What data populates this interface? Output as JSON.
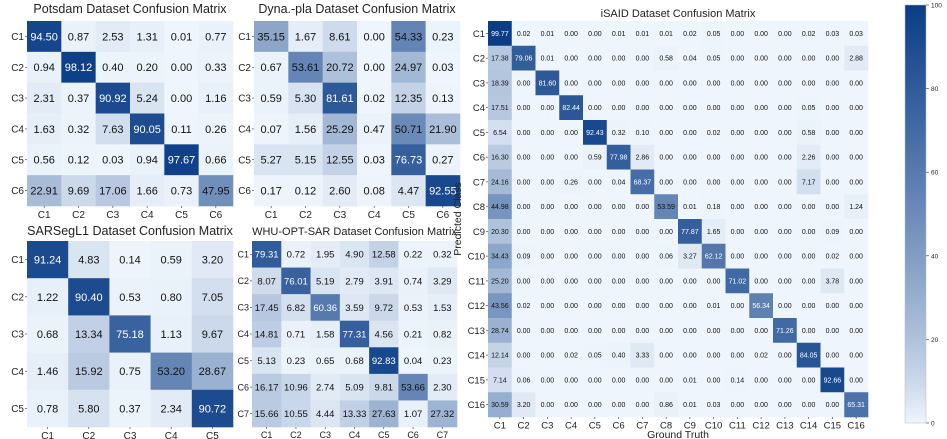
{
  "chart_data": [
    {
      "type": "heatmap",
      "title": "Potsdam Dataset Confusion Matrix",
      "row_labels": [
        "C1",
        "C2",
        "C3",
        "C4",
        "C5",
        "C6"
      ],
      "col_labels": [
        "C1",
        "C2",
        "C3",
        "C4",
        "C5",
        "C6"
      ],
      "values": [
        [
          "94.50",
          "0.87",
          "2.53",
          "1.31",
          "0.01",
          "0.77"
        ],
        [
          "0.94",
          "98.12",
          "0.40",
          "0.20",
          "0.00",
          "0.33"
        ],
        [
          "2.31",
          "0.37",
          "90.92",
          "5.24",
          "0.00",
          "1.16"
        ],
        [
          "1.63",
          "0.32",
          "7.63",
          "90.05",
          "0.11",
          "0.26"
        ],
        [
          "0.56",
          "0.12",
          "0.03",
          "0.94",
          "97.67",
          "0.66"
        ],
        [
          "22.91",
          "9.69",
          "17.06",
          "1.66",
          "0.73",
          "47.95"
        ]
      ]
    },
    {
      "type": "heatmap",
      "title": "Dyna.-pla Dataset Confusion Matrix",
      "row_labels": [
        "C1",
        "C2",
        "C3",
        "C4",
        "C5",
        "C6"
      ],
      "col_labels": [
        "C1",
        "C2",
        "C3",
        "C4",
        "C5",
        "C6"
      ],
      "values": [
        [
          "35.15",
          "1.67",
          "8.61",
          "0.00",
          "54.33",
          "0.23"
        ],
        [
          "0.67",
          "53.61",
          "20.72",
          "0.00",
          "24.97",
          "0.03"
        ],
        [
          "0.59",
          "5.30",
          "81.61",
          "0.02",
          "12.35",
          "0.13"
        ],
        [
          "0.07",
          "1.56",
          "25.29",
          "0.47",
          "50.71",
          "21.90"
        ],
        [
          "5.27",
          "5.15",
          "12.55",
          "0.03",
          "76.73",
          "0.27"
        ],
        [
          "0.17",
          "0.12",
          "2.60",
          "0.08",
          "4.47",
          "92.55"
        ]
      ]
    },
    {
      "type": "heatmap",
      "title": "SARSegL1 Dataset Confusion Matrix",
      "row_labels": [
        "C1",
        "C2",
        "C3",
        "C4",
        "C5"
      ],
      "col_labels": [
        "C1",
        "C2",
        "C3",
        "C4",
        "C5"
      ],
      "values": [
        [
          "91.24",
          "4.83",
          "0.14",
          "0.59",
          "3.20"
        ],
        [
          "1.22",
          "90.40",
          "0.53",
          "0.80",
          "7.05"
        ],
        [
          "0.68",
          "13.34",
          "75.18",
          "1.13",
          "9.67"
        ],
        [
          "1.46",
          "15.92",
          "0.75",
          "53.20",
          "28.67"
        ],
        [
          "0.78",
          "5.80",
          "0.37",
          "2.34",
          "90.72"
        ]
      ]
    },
    {
      "type": "heatmap",
      "title": "WHU-OPT-SAR Dataset Confusion Matrix",
      "row_labels": [
        "C1",
        "C2",
        "C3",
        "C4",
        "C5",
        "C6",
        "C7"
      ],
      "col_labels": [
        "C1",
        "C2",
        "C3",
        "C4",
        "C5",
        "C6",
        "C7"
      ],
      "values": [
        [
          "79.31",
          "0.72",
          "1.95",
          "4.90",
          "12.58",
          "0.22",
          "0.32"
        ],
        [
          "8.07",
          "76.01",
          "5.19",
          "2.79",
          "3.91",
          "0.74",
          "3.29"
        ],
        [
          "17.45",
          "6.82",
          "60.36",
          "3.59",
          "9.72",
          "0.53",
          "1.53"
        ],
        [
          "14.81",
          "0.71",
          "1.58",
          "77.31",
          "4.56",
          "0.21",
          "0.82"
        ],
        [
          "5.13",
          "0.23",
          "0.65",
          "0.68",
          "92.83",
          "0.04",
          "0.23"
        ],
        [
          "16.17",
          "10.96",
          "2.74",
          "5.09",
          "9.81",
          "53.66",
          "2.30"
        ],
        [
          "15.66",
          "10.55",
          "4.44",
          "13.33",
          "27.63",
          "1.07",
          "27.32"
        ]
      ]
    },
    {
      "type": "heatmap",
      "title": "iSAID Dataset Confusion Matrix",
      "xlabel": "Ground Truth",
      "ylabel": "Predicted Class",
      "row_labels": [
        "C1",
        "C2",
        "C3",
        "C4",
        "C5",
        "C6",
        "C7",
        "C8",
        "C9",
        "C10",
        "C11",
        "C12",
        "C13",
        "C14",
        "C15",
        "C16"
      ],
      "col_labels": [
        "C1",
        "C2",
        "C3",
        "C4",
        "C5",
        "C6",
        "C7",
        "C8",
        "C9",
        "C10",
        "C11",
        "C12",
        "C13",
        "C14",
        "C15",
        "C16"
      ],
      "values": [
        [
          "99.77",
          "0.02",
          "0.01",
          "0.00",
          "0.00",
          "0.01",
          "0.01",
          "0.01",
          "0.02",
          "0.05",
          "0.00",
          "0.00",
          "0.00",
          "0.02",
          "0.03",
          "0.03"
        ],
        [
          "17.38",
          "79.06",
          "0.01",
          "0.00",
          "0.00",
          "0.00",
          "0.00",
          "0.58",
          "0.04",
          "0.05",
          "0.00",
          "0.00",
          "0.00",
          "0.00",
          "0.00",
          "2.88"
        ],
        [
          "18.39",
          "0.00",
          "81.60",
          "0.00",
          "0.00",
          "0.00",
          "0.00",
          "0.00",
          "0.00",
          "0.00",
          "0.00",
          "0.00",
          "0.00",
          "0.00",
          "0.00",
          "0.00"
        ],
        [
          "17.51",
          "0.00",
          "0.00",
          "82.44",
          "0.00",
          "0.00",
          "0.00",
          "0.00",
          "0.00",
          "0.00",
          "0.00",
          "0.00",
          "0.00",
          "0.05",
          "0.00",
          "0.00"
        ],
        [
          "6.54",
          "0.00",
          "0.00",
          "0.00",
          "92.43",
          "0.32",
          "0.10",
          "0.00",
          "0.00",
          "0.02",
          "0.00",
          "0.00",
          "0.00",
          "0.58",
          "0.00",
          "0.00"
        ],
        [
          "16.30",
          "0.00",
          "0.00",
          "0.00",
          "0.59",
          "77.98",
          "2.86",
          "0.00",
          "0.00",
          "0.00",
          "0.00",
          "0.00",
          "0.00",
          "2.26",
          "0.00",
          "0.00"
        ],
        [
          "24.16",
          "0.00",
          "0.00",
          "0.26",
          "0.00",
          "0.04",
          "68.37",
          "0.00",
          "0.00",
          "0.00",
          "0.00",
          "0.00",
          "0.00",
          "7.17",
          "0.00",
          "0.00"
        ],
        [
          "44.98",
          "0.00",
          "0.00",
          "0.00",
          "0.00",
          "0.00",
          "0.00",
          "53.59",
          "0.01",
          "0.18",
          "0.00",
          "0.00",
          "0.00",
          "0.00",
          "0.00",
          "1.24"
        ],
        [
          "20.30",
          "0.00",
          "0.00",
          "0.00",
          "0.00",
          "0.00",
          "0.00",
          "0.00",
          "77.87",
          "1.65",
          "0.00",
          "0.00",
          "0.00",
          "0.00",
          "0.09",
          "0.00"
        ],
        [
          "34.43",
          "0.09",
          "0.00",
          "0.00",
          "0.00",
          "0.00",
          "0.00",
          "0.06",
          "3.27",
          "62.12",
          "0.00",
          "0.00",
          "0.00",
          "0.00",
          "0.02",
          "0.00"
        ],
        [
          "25.20",
          "0.00",
          "0.00",
          "0.00",
          "0.00",
          "0.00",
          "0.00",
          "0.00",
          "0.00",
          "0.00",
          "71.02",
          "0.00",
          "0.00",
          "0.00",
          "3.78",
          "0.00"
        ],
        [
          "43.56",
          "0.02",
          "0.00",
          "0.00",
          "0.00",
          "0.00",
          "0.00",
          "0.00",
          "0.00",
          "0.01",
          "0.00",
          "56.34",
          "0.00",
          "0.00",
          "0.00",
          "0.00"
        ],
        [
          "28.74",
          "0.00",
          "0.00",
          "0.00",
          "0.00",
          "0.00",
          "0.00",
          "0.00",
          "0.00",
          "0.00",
          "0.00",
          "0.00",
          "71.26",
          "0.00",
          "0.00",
          "0.00"
        ],
        [
          "12.14",
          "0.00",
          "0.00",
          "0.02",
          "0.05",
          "0.40",
          "3.33",
          "0.00",
          "0.00",
          "0.00",
          "0.00",
          "0.02",
          "0.00",
          "84.05",
          "0.00",
          "0.00"
        ],
        [
          "7.14",
          "0.06",
          "0.00",
          "0.00",
          "0.00",
          "0.00",
          "0.00",
          "0.00",
          "0.01",
          "0.00",
          "0.14",
          "0.00",
          "0.00",
          "0.00",
          "92.66",
          "0.00"
        ],
        [
          "30.59",
          "3.20",
          "0.00",
          "0.00",
          "0.00",
          "0.00",
          "0.00",
          "0.86",
          "0.01",
          "0.03",
          "0.00",
          "0.00",
          "0.00",
          "0.00",
          "0.00",
          "65.31"
        ]
      ]
    }
  ],
  "colorbar": {
    "ticks": [
      0,
      20,
      40,
      60,
      80,
      100
    ],
    "tick_labels": [
      "0",
      "20",
      "40",
      "60",
      "80",
      "100"
    ],
    "range": [
      0,
      100
    ]
  },
  "colors": {
    "low": "#eef5fc",
    "high": "#0b3d87",
    "text_dark": "#111111",
    "text_light": "#ffffff"
  }
}
